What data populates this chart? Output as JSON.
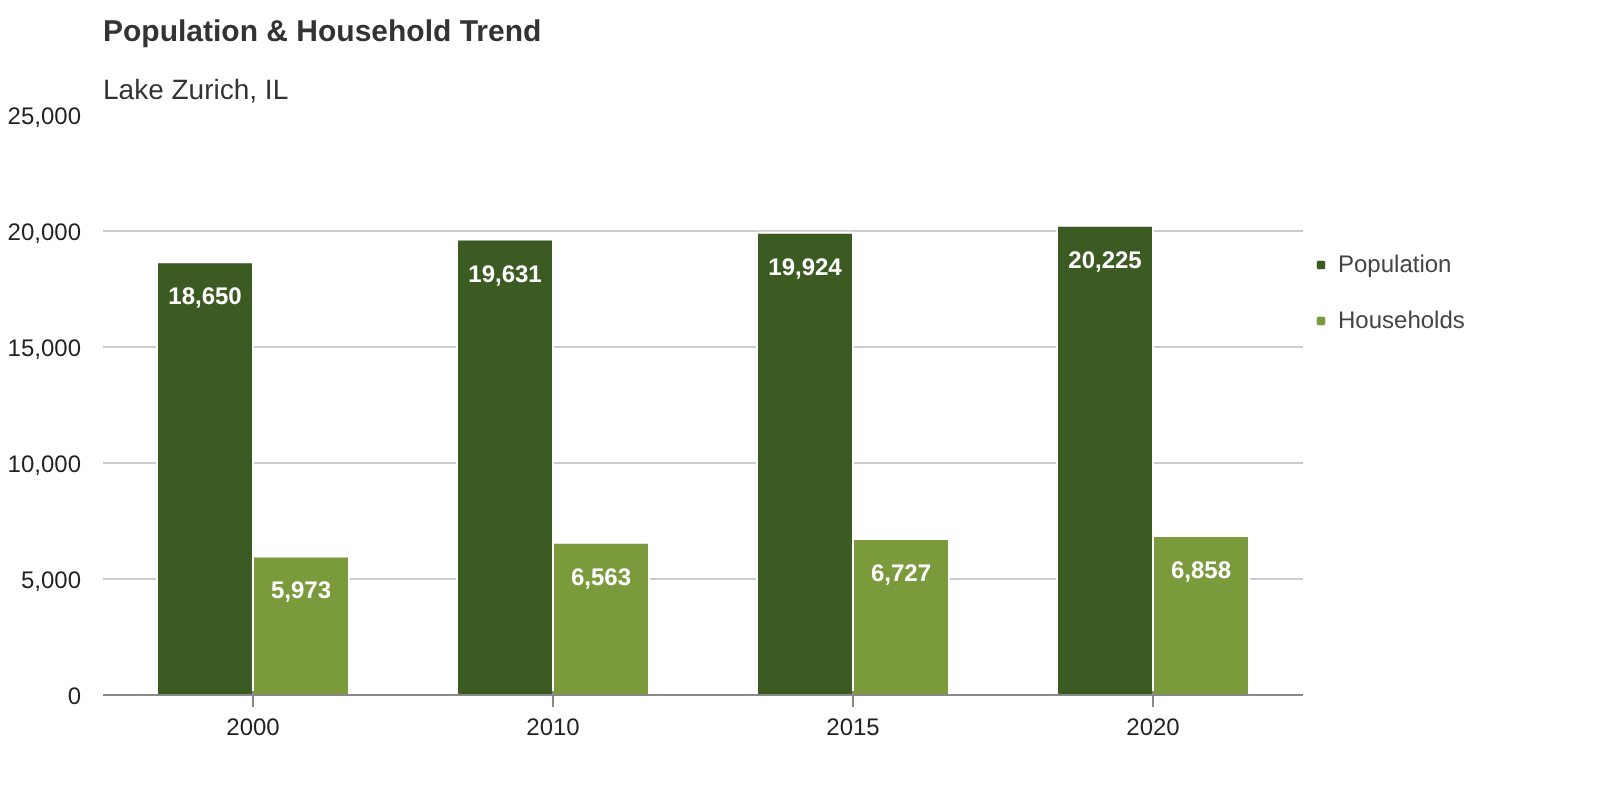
{
  "chart_data": {
    "type": "bar",
    "title": "Population & Household Trend",
    "subtitle": "Lake Zurich, IL",
    "categories": [
      "2000",
      "2010",
      "2015",
      "2020"
    ],
    "series": [
      {
        "name": "Population",
        "color": "#3b5b22",
        "values": [
          18650,
          19631,
          19924,
          20225
        ],
        "value_labels": [
          "18,650",
          "19,631",
          "19,924",
          "20,225"
        ]
      },
      {
        "name": "Households",
        "color": "#7a9a3c",
        "values": [
          5973,
          6563,
          6727,
          6858
        ],
        "value_labels": [
          "5,973",
          "6,563",
          "6,727",
          "6,858"
        ]
      }
    ],
    "ylim": [
      0,
      25000
    ],
    "yticks": [
      {
        "value": 0,
        "label": "0"
      },
      {
        "value": 5000,
        "label": "5,000"
      },
      {
        "value": 10000,
        "label": "10,000"
      },
      {
        "value": 15000,
        "label": "15,000"
      },
      {
        "value": 20000,
        "label": "20,000"
      },
      {
        "value": 25000,
        "label": "25,000"
      }
    ],
    "grid": "y",
    "legend": "right"
  }
}
